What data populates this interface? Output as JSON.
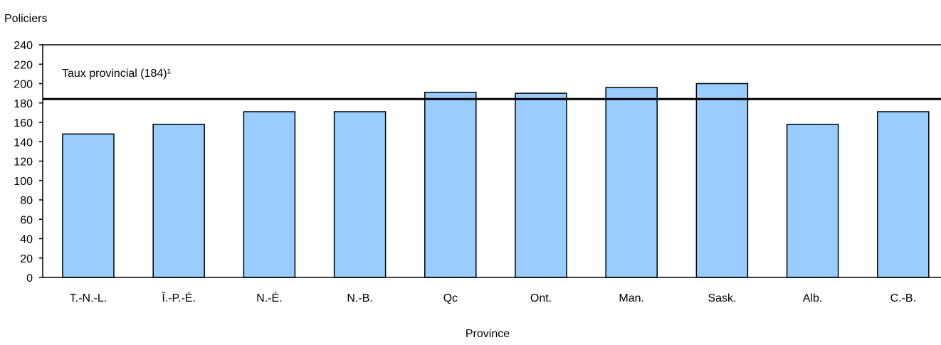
{
  "chart_data": {
    "type": "bar",
    "title": "",
    "ylabel": "Policiers",
    "xlabel": "Province",
    "categories": [
      "T.-N.-L.",
      "Î.-P.-É.",
      "N.-É.",
      "N.-B.",
      "Qc",
      "Ont.",
      "Man.",
      "Sask.",
      "Alb.",
      "C.-B."
    ],
    "values": [
      148,
      158,
      171,
      171,
      191,
      190,
      196,
      200,
      158,
      171
    ],
    "ylim": [
      0,
      240
    ],
    "yticks": [
      0,
      20,
      40,
      60,
      80,
      100,
      120,
      140,
      160,
      180,
      200,
      220,
      240
    ],
    "grid": false,
    "legend": "none",
    "bar_color": "#99ccff",
    "reference_line": {
      "value": 184,
      "label": "Taux provincial (184)¹",
      "color": "#000000"
    }
  }
}
